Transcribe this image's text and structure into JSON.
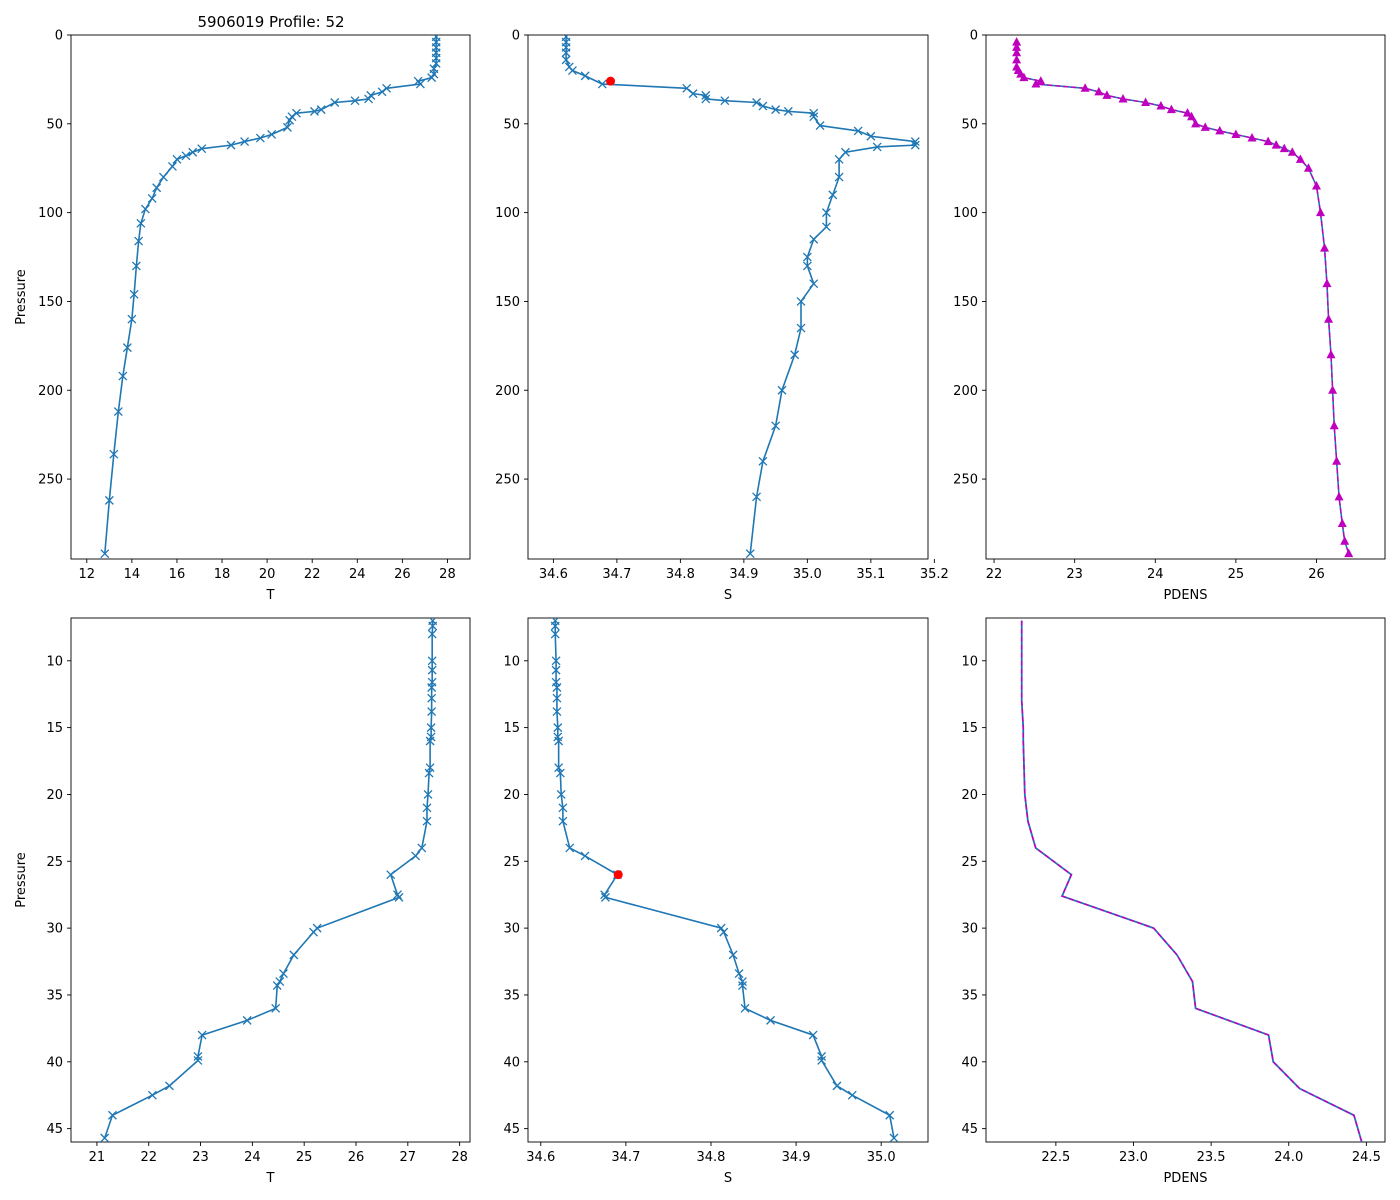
{
  "figure_title": "5906019 Profile: 52",
  "colors": {
    "series": "#1f77b4",
    "density": "#bf00bf",
    "flag": "#ff0000",
    "axes": "#000000"
  },
  "chart_data": [
    {
      "id": "t-full",
      "type": "line",
      "xlabel": "T",
      "ylabel": "Pressure",
      "title": "5906019 Profile: 52",
      "xlim": [
        11.3,
        29.0
      ],
      "ylim": [
        295,
        0
      ],
      "y_inverted": true,
      "xticks": [
        12,
        14,
        16,
        18,
        20,
        22,
        24,
        26,
        28
      ],
      "yticks": [
        0,
        50,
        100,
        150,
        200,
        250
      ],
      "marker": "x",
      "series": [
        {
          "name": "T",
          "x": [
            27.5,
            27.5,
            27.5,
            27.5,
            27.5,
            27.5,
            27.4,
            27.4,
            27.3,
            26.7,
            26.8,
            25.3,
            25.1,
            24.6,
            24.5,
            23.9,
            23.0,
            22.4,
            22.1,
            21.3,
            21.1,
            21.0,
            20.9,
            20.2,
            19.7,
            19.0,
            18.4,
            17.1,
            16.7,
            16.4,
            16.0,
            15.8,
            15.4,
            15.1,
            14.9,
            14.6,
            14.4,
            14.3,
            14.2,
            14.1,
            14.0,
            13.8,
            13.6,
            13.4,
            13.2,
            13.0,
            12.8
          ],
          "y": [
            1,
            4,
            7,
            10,
            13,
            16,
            19,
            22,
            24,
            26,
            27.6,
            30,
            32,
            34,
            36,
            37,
            38,
            42,
            43,
            44,
            46,
            48,
            52,
            56,
            58,
            60,
            62,
            64,
            66,
            68,
            70,
            74,
            80,
            86,
            92,
            98,
            106,
            116,
            130,
            146,
            160,
            176,
            192,
            212,
            236,
            262,
            292
          ]
        }
      ],
      "highlight": []
    },
    {
      "id": "s-full",
      "type": "line",
      "xlabel": "S",
      "ylabel": "",
      "xlim": [
        34.56,
        35.19
      ],
      "ylim": [
        295,
        0
      ],
      "y_inverted": true,
      "xticks": [
        34.6,
        34.7,
        34.8,
        34.9,
        35.0,
        35.1,
        35.2
      ],
      "yticks": [
        0,
        50,
        100,
        150,
        200,
        250
      ],
      "marker": "x",
      "series": [
        {
          "name": "S",
          "x": [
            34.62,
            34.62,
            34.62,
            34.62,
            34.62,
            34.625,
            34.63,
            34.65,
            34.677,
            34.81,
            34.82,
            34.84,
            34.84,
            34.87,
            34.92,
            34.93,
            34.95,
            34.97,
            35.01,
            35.01,
            35.02,
            35.08,
            35.1,
            35.17,
            35.17,
            35.11,
            35.06,
            35.05,
            35.05,
            35.04,
            35.03,
            35.03,
            35.01,
            35.0,
            35.0,
            35.01,
            34.99,
            34.99,
            34.98,
            34.96,
            34.95,
            34.93,
            34.92,
            34.91
          ],
          "y": [
            1,
            4,
            7,
            10,
            14,
            18,
            20,
            23,
            27.6,
            30,
            33,
            34,
            36,
            37,
            38,
            40,
            42,
            43,
            44,
            46,
            51,
            54,
            57,
            60,
            62,
            63,
            66,
            70,
            80,
            90,
            100,
            108,
            115,
            125,
            130,
            140,
            150,
            165,
            180,
            200,
            220,
            240,
            260,
            292
          ]
        }
      ],
      "highlight": [
        {
          "name": "flag",
          "x": 34.69,
          "y": 26
        }
      ]
    },
    {
      "id": "pdens-full",
      "type": "line",
      "xlabel": "PDENS",
      "ylabel": "",
      "xlim": [
        21.9,
        26.85
      ],
      "ylim": [
        295,
        0
      ],
      "y_inverted": true,
      "xticks": [
        22,
        23,
        24,
        25,
        26
      ],
      "yticks": [
        0,
        50,
        100,
        150,
        200,
        250
      ],
      "marker": "triangle",
      "series": [
        {
          "name": "PDENS",
          "x": [
            22.28,
            22.28,
            22.28,
            22.28,
            22.28,
            22.3,
            22.33,
            22.37,
            22.58,
            22.52,
            23.13,
            23.3,
            23.4,
            23.6,
            23.88,
            24.07,
            24.2,
            24.4,
            24.45,
            24.5,
            24.62,
            24.8,
            25.0,
            25.2,
            25.4,
            25.5,
            25.6,
            25.7,
            25.8,
            25.9,
            26.0,
            26.05,
            26.1,
            26.13,
            26.15,
            26.18,
            26.2,
            26.22,
            26.25,
            26.28,
            26.32,
            26.35,
            26.4
          ],
          "y": [
            4,
            7,
            10,
            14,
            18,
            20,
            22,
            24,
            26,
            27.6,
            30,
            32,
            34,
            36,
            38,
            40,
            42,
            44,
            46,
            50,
            52,
            54,
            56,
            58,
            60,
            62,
            64,
            66,
            70,
            75,
            85,
            100,
            120,
            140,
            160,
            180,
            200,
            220,
            240,
            260,
            275,
            285,
            292
          ]
        }
      ],
      "highlight": []
    },
    {
      "id": "t-zoom",
      "type": "line",
      "xlabel": "T",
      "ylabel": "Pressure",
      "xlim": [
        20.5,
        28.2
      ],
      "ylim": [
        46,
        6.8
      ],
      "y_inverted": true,
      "xticks": [
        21,
        22,
        23,
        24,
        25,
        26,
        27,
        28
      ],
      "yticks": [
        10,
        15,
        20,
        25,
        30,
        35,
        40,
        45
      ],
      "marker": "x",
      "series": [
        {
          "name": "T",
          "x": [
            27.48,
            27.48,
            27.47,
            27.47,
            27.47,
            27.47,
            27.46,
            27.46,
            27.46,
            27.45,
            27.45,
            27.43,
            27.43,
            27.41,
            27.39,
            27.37,
            27.37,
            27.27,
            27.15,
            26.67,
            26.8,
            26.83,
            25.25,
            25.18,
            24.8,
            24.6,
            24.53,
            24.48,
            24.45,
            23.9,
            23.03,
            22.95,
            22.95,
            22.4,
            22.07,
            21.3,
            21.15
          ],
          "y": [
            7,
            7.4,
            8,
            10,
            10.7,
            11.6,
            12,
            12.8,
            13.8,
            15,
            15.7,
            16,
            18,
            18.4,
            20,
            21,
            22,
            24,
            24.6,
            26,
            27.5,
            27.7,
            30,
            30.3,
            32,
            33.4,
            34,
            34.3,
            36,
            36.9,
            38,
            39.6,
            39.9,
            41.8,
            42.5,
            44,
            45.7
          ]
        }
      ],
      "highlight": []
    },
    {
      "id": "s-zoom",
      "type": "line",
      "xlabel": "S",
      "ylabel": "",
      "xlim": [
        34.585,
        35.055
      ],
      "ylim": [
        46,
        6.8
      ],
      "y_inverted": true,
      "xticks": [
        34.6,
        34.7,
        34.8,
        34.9,
        35.0
      ],
      "yticks": [
        10,
        15,
        20,
        25,
        30,
        35,
        40,
        45
      ],
      "marker": "x",
      "series": [
        {
          "name": "S",
          "x": [
            34.617,
            34.617,
            34.617,
            34.618,
            34.618,
            34.618,
            34.619,
            34.619,
            34.619,
            34.62,
            34.62,
            34.621,
            34.621,
            34.623,
            34.624,
            34.626,
            34.626,
            34.634,
            34.652,
            34.69,
            34.675,
            34.676,
            34.812,
            34.815,
            34.826,
            34.833,
            34.837,
            34.837,
            34.84,
            34.87,
            34.92,
            34.93,
            34.93,
            34.948,
            34.966,
            35.01,
            35.015
          ],
          "y": [
            7,
            7.4,
            8,
            10,
            10.7,
            11.6,
            12,
            12.8,
            13.8,
            15,
            15.7,
            16,
            18,
            18.4,
            20,
            21,
            22,
            24,
            24.6,
            26,
            27.5,
            27.7,
            30,
            30.3,
            32,
            33.4,
            34,
            34.3,
            36,
            36.9,
            38,
            39.6,
            39.9,
            41.8,
            42.5,
            44,
            45.7
          ]
        }
      ],
      "highlight": [
        {
          "name": "flag",
          "x": 34.691,
          "y": 26
        }
      ]
    },
    {
      "id": "pdens-zoom",
      "type": "line",
      "xlabel": "PDENS",
      "ylabel": "",
      "xlim": [
        22.05,
        24.62
      ],
      "ylim": [
        46,
        6.8
      ],
      "y_inverted": true,
      "xticks": [
        22.5,
        23.0,
        23.5,
        24.0,
        24.5
      ],
      "yticks": [
        10,
        15,
        20,
        25,
        30,
        35,
        40,
        45
      ],
      "marker": "dashed",
      "series": [
        {
          "name": "PDENS",
          "x": [
            22.28,
            22.28,
            22.28,
            22.29,
            22.29,
            22.295,
            22.3,
            22.31,
            22.32,
            22.37,
            22.6,
            22.54,
            23.13,
            23.28,
            23.38,
            23.4,
            23.87,
            23.9,
            24.07,
            24.42,
            24.47
          ],
          "y": [
            7,
            10,
            13,
            15,
            16,
            18,
            20,
            21,
            22,
            24,
            26,
            27.6,
            30,
            32,
            34,
            36,
            38,
            40,
            42,
            44,
            46
          ]
        }
      ],
      "highlight": []
    }
  ]
}
